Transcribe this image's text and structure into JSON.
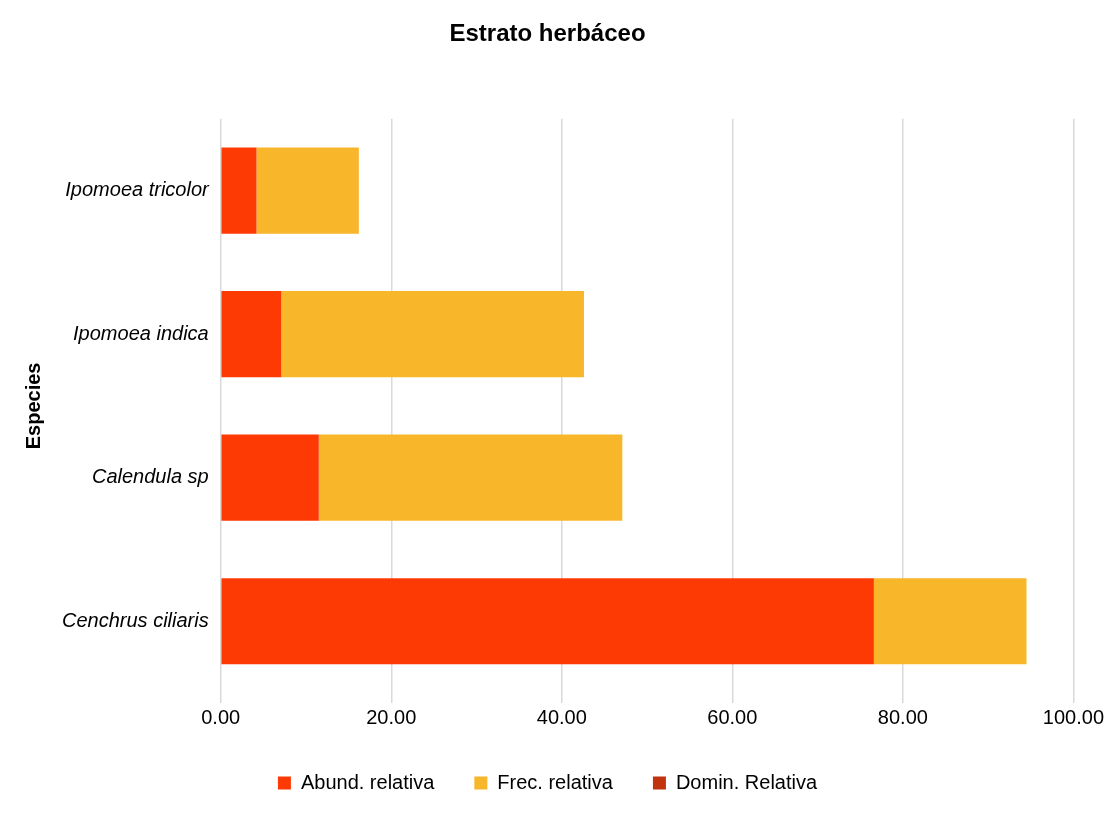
{
  "chart_data": {
    "type": "bar",
    "orientation": "horizontal",
    "stacked": true,
    "title": "Estrato herbáceo",
    "ylabel": "Especies",
    "categories": [
      "Ipomoea tricolor",
      "Ipomoea indica",
      "Calendula sp",
      "Cenchrus ciliaris"
    ],
    "series": [
      {
        "name": "Abund. relativa",
        "color": "#fe3a04",
        "values": [
          4.2,
          7.1,
          11.5,
          76.6
        ]
      },
      {
        "name": "Frec. relativa",
        "color": "#f8b62a",
        "values": [
          12.0,
          35.5,
          35.6,
          17.9
        ]
      },
      {
        "name": "Domin. Relativa",
        "color": "#c0330c",
        "values": [
          0,
          0,
          0,
          0
        ]
      }
    ],
    "xlim": [
      0,
      100
    ],
    "xticks": [
      {
        "value": 0,
        "label": "0.00"
      },
      {
        "value": 20,
        "label": "20.00"
      },
      {
        "value": 40,
        "label": "40.00"
      },
      {
        "value": 60,
        "label": "60.00"
      },
      {
        "value": 80,
        "label": "80.00"
      },
      {
        "value": 100,
        "label": "100.00"
      }
    ],
    "grid": "x",
    "legend": "bottom"
  }
}
